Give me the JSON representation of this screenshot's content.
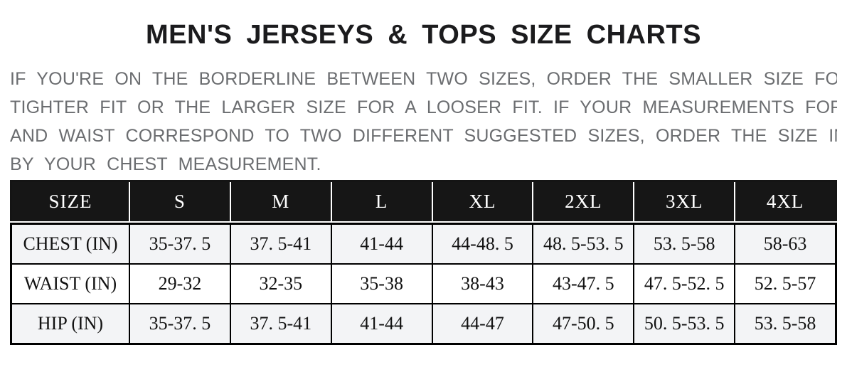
{
  "title": "MEN'S JERSEYS & TOPS SIZE CHARTS",
  "intro": {
    "lines": [
      "IF YOU'RE ON THE BORDERLINE BETWEEN TWO SIZES, ORDER THE SMALLER SIZE FOR A",
      "TIGHTER FIT OR THE LARGER SIZE FOR A LOOSER FIT. IF YOUR MEASUREMENTS FOR CHEST",
      "AND WAIST CORRESPOND TO TWO DIFFERENT SUGGESTED SIZES, ORDER THE SIZE INDICATED",
      "BY YOUR CHEST MEASUREMENT."
    ]
  },
  "size_chart": {
    "columns": [
      "SIZE",
      "S",
      "M",
      "L",
      "XL",
      "2XL",
      "3XL",
      "4XL"
    ],
    "rows": [
      {
        "label": "CHEST (IN)",
        "values": [
          "35-37. 5",
          "37. 5-41",
          "41-44",
          "44-48. 5",
          "48. 5-53. 5",
          "53. 5-58",
          "58-63"
        ]
      },
      {
        "label": "WAIST (IN)",
        "values": [
          "29-32",
          "32-35",
          "35-38",
          "38-43",
          "43-47. 5",
          "47. 5-52. 5",
          "52. 5-57"
        ]
      },
      {
        "label": "HIP (IN)",
        "values": [
          "35-37. 5",
          "37. 5-41",
          "41-44",
          "44-47",
          "47-50. 5",
          "50. 5-53. 5",
          "53. 5-58"
        ]
      }
    ]
  },
  "colors": {
    "title_text": "#1b1b1d",
    "intro_text": "#6b6d70",
    "header_bg": "#161616",
    "header_text": "#ffffff",
    "grid_border": "#000000",
    "row_shade_bg": "#f3f4f6",
    "row_plain_bg": "#ffffff",
    "page_bg": "#ffffff"
  }
}
